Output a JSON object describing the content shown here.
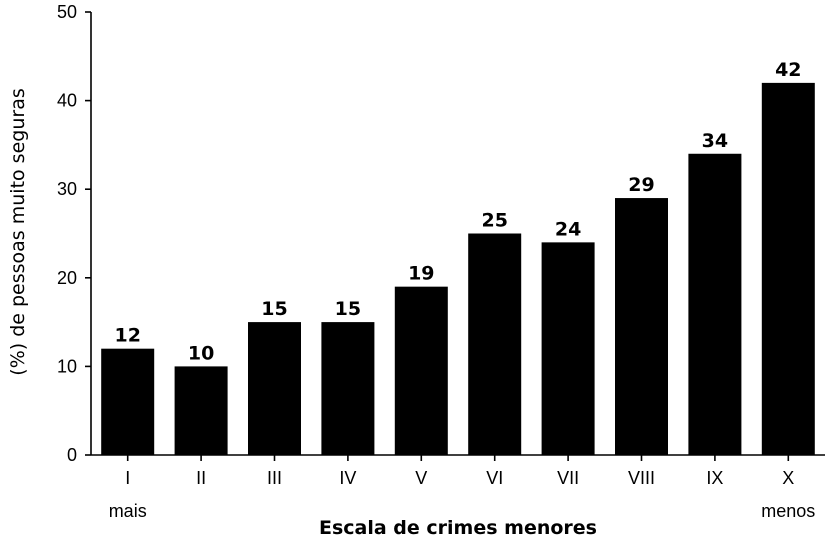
{
  "chart_data": {
    "type": "bar",
    "title": "",
    "xlabel": "Escala de crimes menores",
    "ylabel": "(%) de pessoas muito seguras",
    "categories": [
      "I",
      "II",
      "III",
      "IV",
      "V",
      "VI",
      "VII",
      "VIII",
      "IX",
      "X"
    ],
    "category_sublabels": [
      "mais",
      "",
      "",
      "",
      "",
      "",
      "",
      "",
      "",
      "menos"
    ],
    "values": [
      12,
      10,
      15,
      15,
      19,
      25,
      24,
      29,
      34,
      42
    ],
    "data_labels": [
      "12",
      "10",
      "15",
      "15",
      "19",
      "25",
      "24",
      "29",
      "34",
      "42"
    ],
    "ylim": [
      0,
      50
    ],
    "yticks": [
      0,
      10,
      20,
      30,
      40,
      50
    ],
    "grid": false,
    "legend": "none",
    "bar_color": "#000000"
  }
}
